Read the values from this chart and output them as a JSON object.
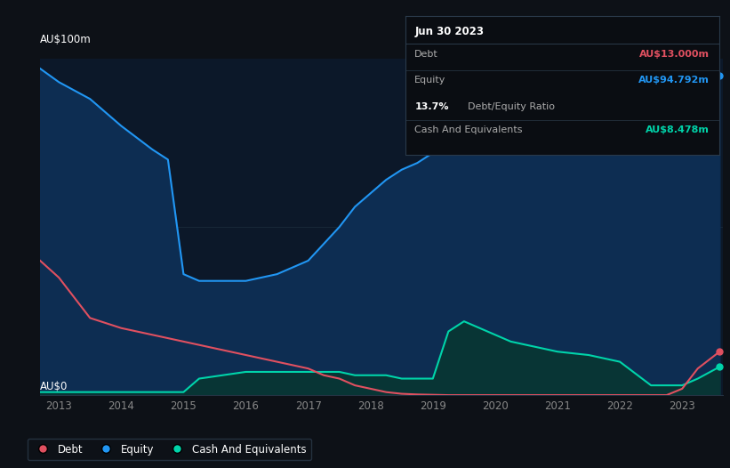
{
  "bg_color": "#0d1117",
  "plot_bg_color": "#0c1829",
  "equity_color": "#2196f3",
  "equity_fill_color": "#0d2d52",
  "debt_color": "#e05060",
  "cash_color": "#00d4aa",
  "cash_fill_color": "#083535",
  "grid_color": "#1a2a3a",
  "years": [
    2012.7,
    2013.0,
    2013.5,
    2014.0,
    2014.5,
    2014.75,
    2015.0,
    2015.25,
    2016.0,
    2016.5,
    2017.0,
    2017.25,
    2017.5,
    2017.75,
    2018.0,
    2018.25,
    2018.5,
    2018.75,
    2019.0,
    2019.25,
    2019.5,
    2019.75,
    2020.0,
    2020.25,
    2020.5,
    2020.75,
    2021.0,
    2021.5,
    2022.0,
    2022.5,
    2022.75,
    2023.0,
    2023.25,
    2023.6
  ],
  "equity": [
    97,
    93,
    88,
    80,
    73,
    70,
    36,
    34,
    34,
    36,
    40,
    45,
    50,
    56,
    60,
    64,
    67,
    69,
    72,
    77,
    75,
    75,
    79,
    86,
    85,
    84,
    87,
    89,
    87,
    82,
    80,
    86,
    91,
    95
  ],
  "debt": [
    40,
    35,
    23,
    20,
    18,
    17,
    16,
    15,
    12,
    10,
    8,
    6,
    5,
    3,
    2,
    1,
    0.5,
    0.3,
    0.2,
    0.1,
    0.1,
    0.1,
    0.1,
    0.1,
    0.1,
    0.1,
    0.1,
    0.1,
    0.1,
    0.1,
    0.1,
    2,
    8,
    13
  ],
  "cash": [
    1,
    1,
    1,
    1,
    1,
    1,
    1,
    5,
    7,
    7,
    7,
    7,
    7,
    6,
    6,
    6,
    5,
    5,
    5,
    19,
    22,
    20,
    18,
    16,
    15,
    14,
    13,
    12,
    10,
    3,
    3,
    3,
    5,
    8.5
  ],
  "xtick_labels": [
    "2013",
    "2014",
    "2015",
    "2016",
    "2017",
    "2018",
    "2019",
    "2020",
    "2021",
    "2022",
    "2023"
  ],
  "xtick_positions": [
    2013,
    2014,
    2015,
    2016,
    2017,
    2018,
    2019,
    2020,
    2021,
    2022,
    2023
  ],
  "ylim": [
    0,
    100
  ],
  "xlim": [
    2012.7,
    2023.65
  ],
  "ylabel_top": "AU$100m",
  "ylabel_bottom": "AU$0",
  "tooltip": {
    "date": "Jun 30 2023",
    "rows": [
      {
        "label": "Debt",
        "value": "AU$13.000m",
        "value_color": "#e05060"
      },
      {
        "label": "Equity",
        "value": "AU$94.792m",
        "value_color": "#2196f3"
      },
      {
        "label": "",
        "value": "13.7% Debt/Equity Ratio",
        "value_color": null
      },
      {
        "label": "Cash And Equivalents",
        "value": "AU$8.478m",
        "value_color": "#00d4aa"
      }
    ],
    "ratio_bold": "13.7%",
    "ratio_rest": " Debt/Equity Ratio"
  },
  "legend": [
    {
      "label": "Debt",
      "color": "#e05060"
    },
    {
      "label": "Equity",
      "color": "#2196f3"
    },
    {
      "label": "Cash And Equivalents",
      "color": "#00d4aa"
    }
  ]
}
